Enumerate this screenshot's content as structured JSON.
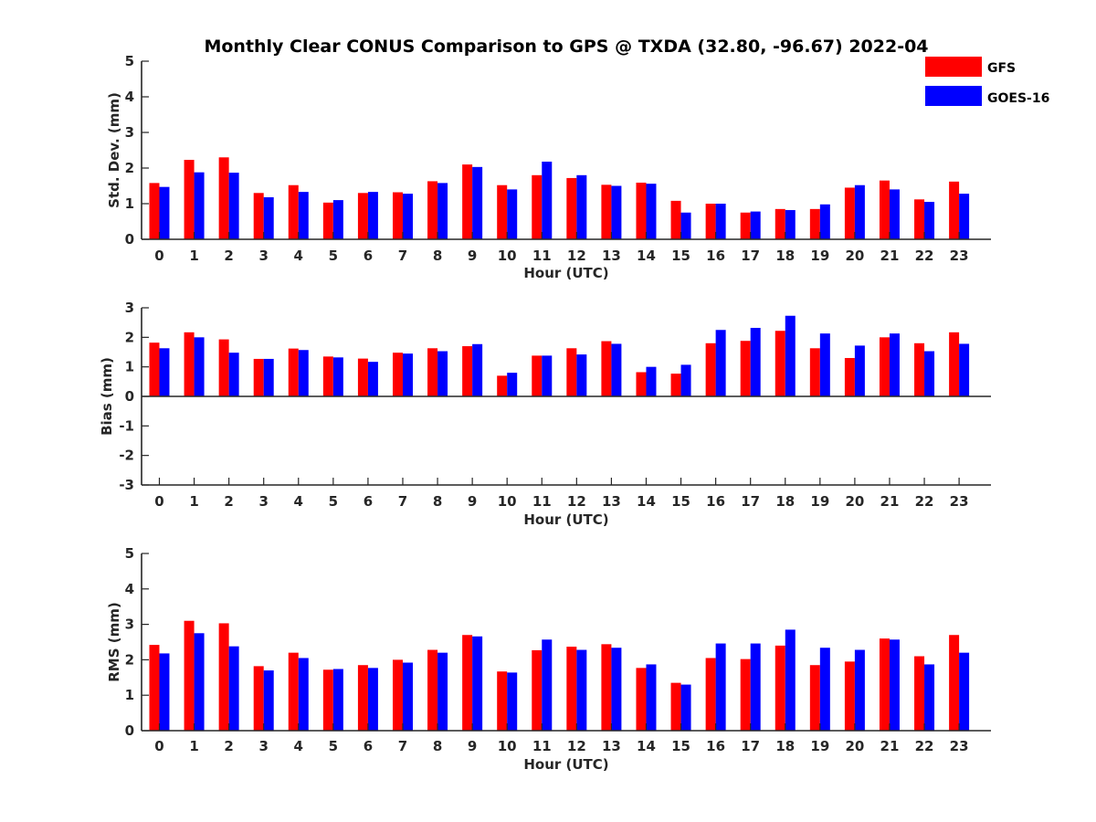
{
  "title": "Monthly Clear CONUS Comparison to GPS @ TXDA (32.80, -96.67) 2022-04",
  "legend": [
    {
      "name": "GFS",
      "color": "#ff0000"
    },
    {
      "name": "GOES-16",
      "color": "#0000ff"
    }
  ],
  "chart_data": [
    {
      "type": "bar",
      "xlabel": "Hour (UTC)",
      "ylabel": "Std. Dev. (mm)",
      "ylim": [
        0,
        5
      ],
      "yticks": [
        0,
        1,
        2,
        3,
        4,
        5
      ],
      "categories": [
        "0",
        "1",
        "2",
        "3",
        "4",
        "5",
        "6",
        "7",
        "8",
        "9",
        "10",
        "11",
        "12",
        "13",
        "14",
        "15",
        "16",
        "17",
        "18",
        "19",
        "20",
        "21",
        "22",
        "23"
      ],
      "series": [
        {
          "name": "GFS",
          "values": [
            1.58,
            2.23,
            2.3,
            1.3,
            1.52,
            1.03,
            1.3,
            1.32,
            1.63,
            2.1,
            1.52,
            1.8,
            1.72,
            1.53,
            1.59,
            1.08,
            1.0,
            0.75,
            0.85,
            0.85,
            1.45,
            1.65,
            1.12,
            1.62
          ]
        },
        {
          "name": "GOES-16",
          "values": [
            1.47,
            1.88,
            1.87,
            1.18,
            1.33,
            1.1,
            1.33,
            1.28,
            1.58,
            2.03,
            1.4,
            2.18,
            1.8,
            1.5,
            1.56,
            0.75,
            1.0,
            0.78,
            0.82,
            0.98,
            1.52,
            1.4,
            1.05,
            1.28
          ]
        }
      ]
    },
    {
      "type": "bar",
      "xlabel": "Hour (UTC)",
      "ylabel": "Bias (mm)",
      "ylim": [
        -3,
        3
      ],
      "yticks": [
        -3,
        -2,
        -1,
        0,
        1,
        2,
        3
      ],
      "categories": [
        "0",
        "1",
        "2",
        "3",
        "4",
        "5",
        "6",
        "7",
        "8",
        "9",
        "10",
        "11",
        "12",
        "13",
        "14",
        "15",
        "16",
        "17",
        "18",
        "19",
        "20",
        "21",
        "22",
        "23"
      ],
      "series": [
        {
          "name": "GFS",
          "values": [
            1.82,
            2.17,
            1.93,
            1.27,
            1.62,
            1.35,
            1.28,
            1.48,
            1.63,
            1.7,
            0.7,
            1.38,
            1.63,
            1.87,
            0.82,
            0.77,
            1.8,
            1.88,
            2.22,
            1.63,
            1.3,
            2.0,
            1.8,
            2.17
          ]
        },
        {
          "name": "GOES-16",
          "values": [
            1.63,
            2.0,
            1.48,
            1.27,
            1.57,
            1.32,
            1.17,
            1.45,
            1.53,
            1.77,
            0.8,
            1.38,
            1.42,
            1.78,
            1.0,
            1.07,
            2.25,
            2.32,
            2.73,
            2.13,
            1.72,
            2.13,
            1.53,
            1.78
          ]
        }
      ]
    },
    {
      "type": "bar",
      "xlabel": "Hour (UTC)",
      "ylabel": "RMS (mm)",
      "ylim": [
        0,
        5
      ],
      "yticks": [
        0,
        1,
        2,
        3,
        4,
        5
      ],
      "categories": [
        "0",
        "1",
        "2",
        "3",
        "4",
        "5",
        "6",
        "7",
        "8",
        "9",
        "10",
        "11",
        "12",
        "13",
        "14",
        "15",
        "16",
        "17",
        "18",
        "19",
        "20",
        "21",
        "22",
        "23"
      ],
      "series": [
        {
          "name": "GFS",
          "values": [
            2.42,
            3.1,
            3.03,
            1.82,
            2.2,
            1.72,
            1.85,
            2.0,
            2.28,
            2.7,
            1.67,
            2.27,
            2.37,
            2.44,
            1.77,
            1.35,
            2.05,
            2.02,
            2.4,
            1.85,
            1.95,
            2.6,
            2.1,
            2.7
          ]
        },
        {
          "name": "GOES-16",
          "values": [
            2.18,
            2.75,
            2.38,
            1.7,
            2.05,
            1.74,
            1.77,
            1.92,
            2.2,
            2.66,
            1.64,
            2.57,
            2.28,
            2.34,
            1.87,
            1.3,
            2.46,
            2.46,
            2.85,
            2.34,
            2.28,
            2.57,
            1.87,
            2.2
          ]
        }
      ]
    }
  ]
}
